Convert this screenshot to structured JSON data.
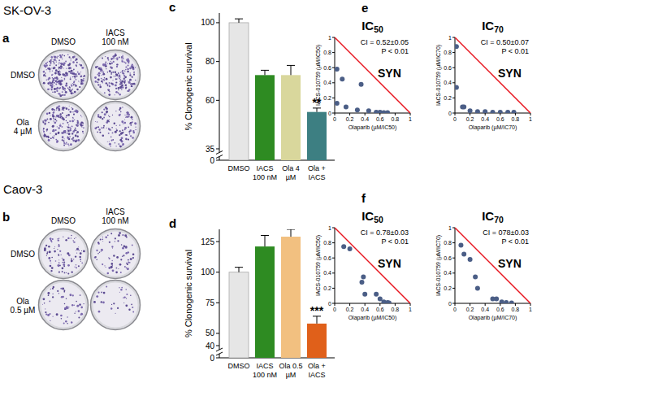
{
  "images": [
    {
      "panel_label": "a",
      "cell_line": "SK-OV-3",
      "columns": [
        "DMSO",
        "IACS 100 nM"
      ],
      "rows": [
        "DMSO",
        "Ola 4 µM"
      ]
    },
    {
      "panel_label": "b",
      "cell_line": "Caov-3",
      "columns": [
        "DMSO",
        "IACS 100 nM"
      ],
      "rows": [
        "DMSO",
        "Ola 0.5 µM"
      ]
    }
  ],
  "chart_data": [
    {
      "type": "bar",
      "panel_label": "c",
      "y_label": "% Clonogenic survival",
      "categories": [
        "DMSO",
        "IACS 100 nM",
        "Ola 4 µM",
        "Ola + IACS"
      ],
      "values": [
        100,
        73,
        73,
        54
      ],
      "errors": [
        2,
        2.5,
        5,
        2
      ],
      "significance": [
        null,
        null,
        null,
        "**"
      ],
      "colors": [
        "#e6e6e6",
        "#2e8b22",
        "#d9d79c",
        "#3d7f82"
      ],
      "ylim": [
        0,
        105
      ],
      "yticks": [
        0,
        35,
        60,
        80,
        100
      ],
      "axis_break": [
        0,
        35
      ]
    },
    {
      "type": "bar",
      "panel_label": "d",
      "y_label": "% Clonogenic survival",
      "categories": [
        "DMSO",
        "IACS 100 nM",
        "Ola 0.5 µM",
        "Ola + IACS"
      ],
      "values": [
        100,
        121,
        129,
        58
      ],
      "errors": [
        4,
        9,
        6,
        6
      ],
      "significance": [
        null,
        null,
        null,
        "***"
      ],
      "colors": [
        "#e6e6e6",
        "#2e8b22",
        "#f2c080",
        "#e0601a"
      ],
      "ylim": [
        0,
        135
      ],
      "yticks": [
        0,
        40,
        50,
        75,
        100,
        125
      ],
      "axis_break": [
        0,
        40
      ]
    },
    {
      "type": "scatter",
      "panel_label": "e",
      "title": "IC50",
      "x_label": "Olaparib (µM/IC50)",
      "y_label": "IACS-010759 (µM/IC50)",
      "x": [
        0.03,
        0.1,
        0.03,
        0.15,
        0.35,
        0.3,
        0.45,
        0.55,
        0.6,
        0.65,
        0.7
      ],
      "y": [
        0.58,
        0.45,
        0.13,
        0.08,
        0.38,
        0.04,
        0.03,
        0.01,
        0.01,
        0.005,
        0.005
      ],
      "color": "#4b5e86",
      "additivity_line": {
        "x": [
          0,
          1
        ],
        "y": [
          1,
          0
        ],
        "color": "#e8141e"
      },
      "annotations": [
        "CI = 0.52±0.05",
        "P < 0.01",
        "SYN"
      ],
      "xlim": [
        0,
        1
      ],
      "ylim": [
        0,
        1
      ],
      "xticks": [
        0,
        0.2,
        0.4,
        0.6,
        0.8,
        1
      ],
      "yticks": [
        0,
        0.2,
        0.4,
        0.6,
        0.8,
        1
      ]
    },
    {
      "type": "scatter",
      "title": "IC70",
      "x_label": "Olaparib (µM/IC70)",
      "y_label": "IACS-010759 (µM/IC70)",
      "x": [
        0.02,
        0.02,
        0.1,
        0.12,
        0.2,
        0.3,
        0.4,
        0.5,
        0.6,
        0.7,
        0.78
      ],
      "y": [
        0.88,
        0.34,
        0.08,
        0.08,
        0.03,
        0.02,
        0.02,
        0.01,
        0.01,
        0.01,
        0.01
      ],
      "color": "#4b5e86",
      "additivity_line": {
        "x": [
          0,
          1
        ],
        "y": [
          1,
          0
        ],
        "color": "#e8141e"
      },
      "annotations": [
        "CI = 0.50±0.07",
        "P < 0.01",
        "SYN"
      ],
      "xlim": [
        0,
        1
      ],
      "ylim": [
        0,
        1
      ],
      "xticks": [
        0,
        0.2,
        0.4,
        0.6,
        0.8,
        1
      ],
      "yticks": [
        0,
        0.2,
        0.4,
        0.6,
        0.8,
        1
      ]
    },
    {
      "type": "scatter",
      "panel_label": "f",
      "title": "IC50",
      "x_label": "Olaparib (µM/IC50)",
      "y_label": "IACS-010759 (µM/IC50)",
      "x": [
        0.12,
        0.2,
        0.38,
        0.36,
        0.4,
        0.55,
        0.6,
        0.65,
        0.7,
        0.72
      ],
      "y": [
        0.75,
        0.72,
        0.35,
        0.28,
        0.12,
        0.12,
        0.06,
        0.02,
        0.01,
        0.005
      ],
      "color": "#4b5e86",
      "additivity_line": {
        "x": [
          0,
          1
        ],
        "y": [
          1,
          0
        ],
        "color": "#e8141e"
      },
      "annotations": [
        "CI = 0.78±0.03",
        "P < 0.01",
        "SYN"
      ],
      "xlim": [
        0,
        1
      ],
      "ylim": [
        0,
        1
      ],
      "xticks": [
        0,
        0.2,
        0.4,
        0.6,
        0.8,
        1
      ],
      "yticks": [
        0,
        0.2,
        0.4,
        0.6,
        0.8,
        1
      ]
    },
    {
      "type": "scatter",
      "title": "IC70",
      "x_label": "Olaparib (µM/IC70)",
      "y_label": "IACS-010759 (µM/IC70)",
      "x": [
        0.08,
        0.12,
        0.2,
        0.27,
        0.3,
        0.5,
        0.55,
        0.62,
        0.68,
        0.75
      ],
      "y": [
        0.77,
        0.65,
        0.58,
        0.35,
        0.2,
        0.06,
        0.06,
        0.02,
        0.01,
        0.005
      ],
      "color": "#4b5e86",
      "additivity_line": {
        "x": [
          0,
          1
        ],
        "y": [
          1,
          0
        ],
        "color": "#e8141e"
      },
      "annotations": [
        "CI = 078±0.03",
        "P < 0.01",
        "SYN"
      ],
      "xlim": [
        0,
        1
      ],
      "ylim": [
        0,
        1
      ],
      "xticks": [
        0,
        0.2,
        0.4,
        0.6,
        0.8,
        1
      ],
      "yticks": [
        0,
        0.2,
        0.4,
        0.6,
        0.8,
        1
      ]
    }
  ]
}
